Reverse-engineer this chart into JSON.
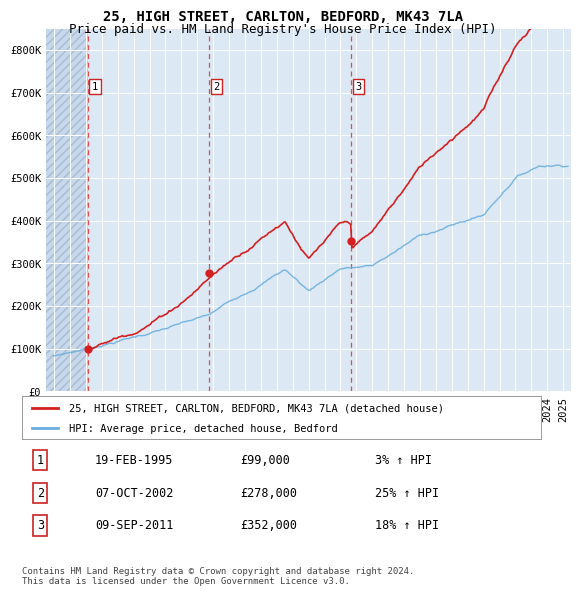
{
  "title": "25, HIGH STREET, CARLTON, BEDFORD, MK43 7LA",
  "subtitle": "Price paid vs. HM Land Registry's House Price Index (HPI)",
  "ylim": [
    0,
    850000
  ],
  "yticks": [
    0,
    100000,
    200000,
    300000,
    400000,
    500000,
    600000,
    700000,
    800000
  ],
  "ytick_labels": [
    "£0",
    "£100K",
    "£200K",
    "£300K",
    "£400K",
    "£500K",
    "£600K",
    "£700K",
    "£800K"
  ],
  "hpi_color": "#6aaee0",
  "price_color": "#d42020",
  "background_color": "#dce9f5",
  "vline_color": "#dd3333",
  "legend_line1": "25, HIGH STREET, CARLTON, BEDFORD, MK43 7LA (detached house)",
  "legend_line2": "HPI: Average price, detached house, Bedford",
  "transactions": [
    {
      "num": 1,
      "date": "19-FEB-1995",
      "price": 99000,
      "pct": "3%",
      "x_year": 1995.12
    },
    {
      "num": 2,
      "date": "07-OCT-2002",
      "price": 278000,
      "pct": "25%",
      "x_year": 2002.77
    },
    {
      "num": 3,
      "date": "09-SEP-2011",
      "price": 352000,
      "pct": "18%",
      "x_year": 2011.69
    }
  ],
  "table_rows": [
    [
      "1",
      "19-FEB-1995",
      "£99,000",
      "3% ↑ HPI"
    ],
    [
      "2",
      "07-OCT-2002",
      "£278,000",
      "25% ↑ HPI"
    ],
    [
      "3",
      "09-SEP-2011",
      "£352,000",
      "18% ↑ HPI"
    ]
  ],
  "footer": "Contains HM Land Registry data © Crown copyright and database right 2024.\nThis data is licensed under the Open Government Licence v3.0.",
  "title_fontsize": 10,
  "subtitle_fontsize": 9,
  "tick_fontsize": 7.5,
  "xlim_start": 1992.5,
  "xlim_end": 2025.5
}
